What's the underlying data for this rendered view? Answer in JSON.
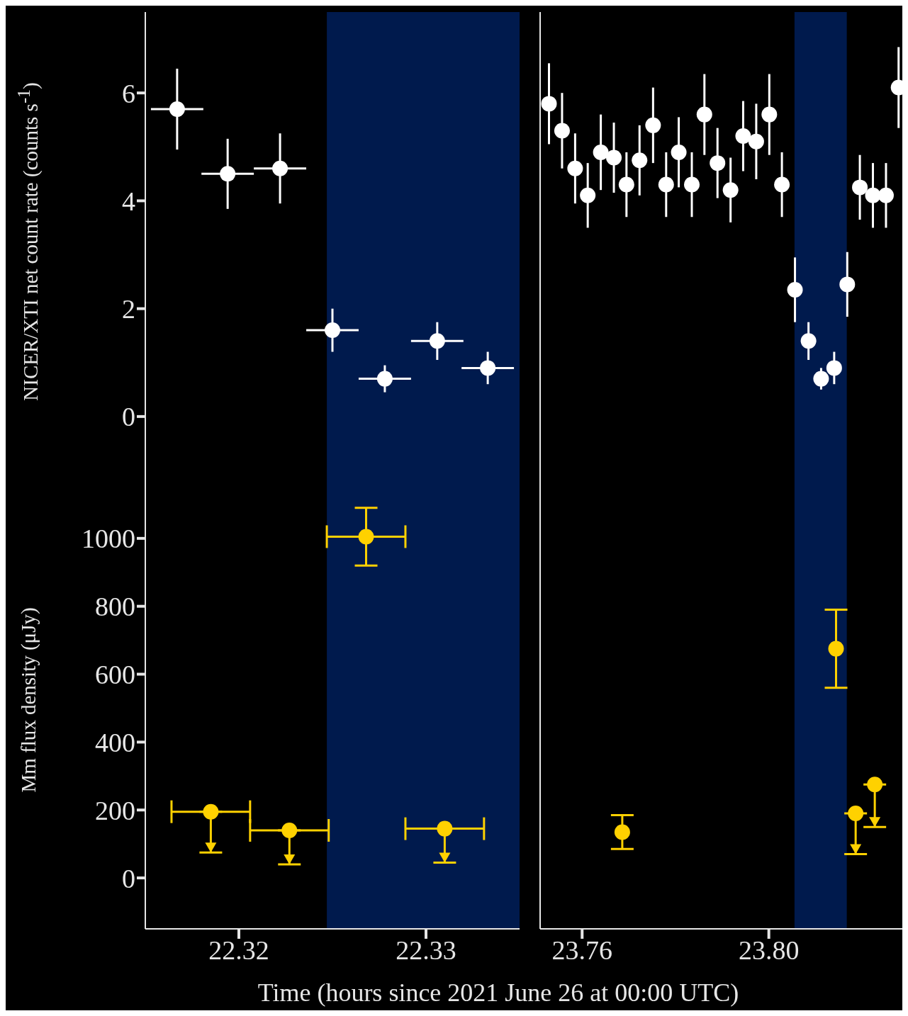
{
  "chart_data": [
    {
      "type": "scatter",
      "ylabel": "NICER/XTI net count rate (counts s$^{-1}$)",
      "xlim": [
        22.315,
        22.335
      ],
      "xticks": [
        22.32,
        22.33
      ],
      "ylim": [
        -1,
        7.5
      ],
      "yticks": [
        0,
        2,
        4,
        6
      ],
      "tick_labels": "y",
      "grid": false,
      "legend": false,
      "marker": "circle",
      "bands": [
        {
          "axis": "x",
          "from": 22.3247,
          "to": 22.335,
          "color": "#001a4d"
        }
      ],
      "series": [
        {
          "color": "#ffffff",
          "x": [
            22.3167,
            22.3194,
            22.3222,
            22.325,
            22.3278,
            22.3306,
            22.3333
          ],
          "values": [
            5.7,
            4.5,
            4.6,
            1.6,
            0.7,
            1.4,
            0.9
          ],
          "errors": [
            0.75,
            0.65,
            0.65,
            0.4,
            0.25,
            0.35,
            0.3
          ],
          "xerrors": [
            0.0014,
            0.0014,
            0.0014,
            0.0014,
            0.0014,
            0.0014,
            0.0014
          ]
        }
      ]
    },
    {
      "type": "scatter",
      "xlim": [
        23.751,
        23.8286
      ],
      "xticks": [
        23.76,
        23.8
      ],
      "ylim": [
        -1,
        7.5
      ],
      "yticks": [
        0,
        2,
        4,
        6
      ],
      "tick_labels": false,
      "grid": false,
      "legend": false,
      "marker": "circle",
      "bands": [
        {
          "axis": "x",
          "from": 23.8055,
          "to": 23.8167,
          "color": "#001a4d"
        }
      ],
      "series": [
        {
          "color": "#ffffff",
          "x": [
            23.7529,
            23.7557,
            23.7585,
            23.7612,
            23.764,
            23.7668,
            23.7695,
            23.7723,
            23.7752,
            23.778,
            23.7807,
            23.7835,
            23.7862,
            23.789,
            23.7918,
            23.7945,
            23.7973,
            23.8001,
            23.8028,
            23.8056,
            23.8085,
            23.8112,
            23.814,
            23.8168,
            23.8195,
            23.8223,
            23.8251,
            23.8278
          ],
          "values": [
            5.8,
            5.3,
            4.6,
            4.1,
            4.9,
            4.8,
            4.3,
            4.75,
            5.4,
            4.3,
            4.9,
            4.3,
            5.6,
            4.7,
            4.2,
            5.2,
            5.1,
            5.6,
            4.3,
            2.35,
            1.4,
            0.7,
            0.9,
            2.45,
            4.25,
            4.1,
            4.1,
            6.1
          ],
          "errors": [
            0.75,
            0.7,
            0.65,
            0.6,
            0.7,
            0.65,
            0.6,
            0.65,
            0.7,
            0.6,
            0.65,
            0.6,
            0.75,
            0.65,
            0.6,
            0.65,
            0.7,
            0.75,
            0.6,
            0.6,
            0.35,
            0.2,
            0.3,
            0.6,
            0.6,
            0.6,
            0.6,
            0.75
          ]
        }
      ]
    },
    {
      "type": "scatter",
      "ylabel": "Mm flux density (μJy)",
      "xlabel": "Time (hours since 2021 June 26 at 00:00 UTC)",
      "xlim": [
        22.315,
        22.335
      ],
      "xticks": [
        22.32,
        22.33
      ],
      "ylim": [
        -150,
        1200
      ],
      "yticks": [
        0,
        200,
        400,
        600,
        800,
        1000
      ],
      "grid": false,
      "legend": false,
      "marker": "circle",
      "bands": [
        {
          "axis": "x",
          "from": 22.3247,
          "to": 22.335,
          "color": "#001a4d"
        }
      ],
      "series": [
        {
          "color": "#ffd100",
          "x": [
            22.3185,
            22.3227,
            22.3268,
            22.331
          ],
          "values": [
            195,
            140,
            1005,
            145
          ],
          "errors": [
            [
              75,
              195
            ],
            [
              40,
              140
            ],
            [
              920,
              1090
            ],
            [
              45,
              145
            ]
          ],
          "xerrors": [
            0.0021,
            0.0021,
            0.0021,
            0.0021
          ]
        }
      ]
    },
    {
      "type": "scatter",
      "xlim": [
        23.751,
        23.8286
      ],
      "xticks": [
        23.76,
        {
          "value": 23.8,
          "label": "23.80"
        }
      ],
      "ylim": [
        -150,
        1200
      ],
      "yticks": [
        0,
        200,
        400,
        600,
        800,
        1000
      ],
      "tick_labels": "x",
      "grid": false,
      "legend": false,
      "marker": "circle",
      "bands": [
        {
          "axis": "x",
          "from": 23.8055,
          "to": 23.8167,
          "color": "#001a4d"
        }
      ],
      "series": [
        {
          "color": "#ffd100",
          "x": [
            23.7686,
            23.8144,
            23.8186,
            23.8227
          ],
          "values": [
            135,
            675,
            190,
            275
          ],
          "errors": [
            [
              85,
              185
            ],
            [
              560,
              790
            ],
            [
              70,
              190
            ],
            [
              150,
              275
            ]
          ]
        }
      ]
    }
  ]
}
